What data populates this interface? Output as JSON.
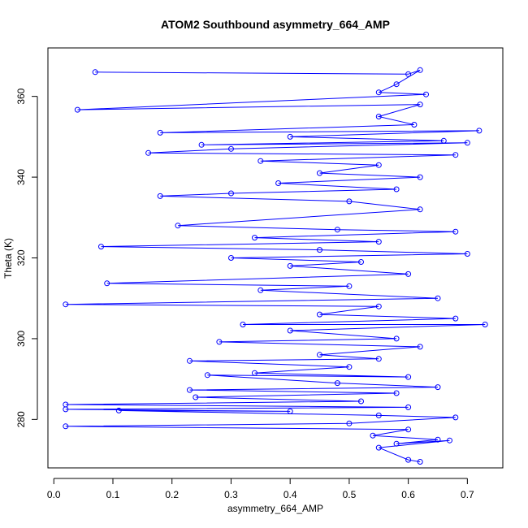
{
  "chart_data": {
    "type": "line",
    "title": "ATOM2 Southbound asymmetry_664_AMP",
    "xlabel": "asymmetry_664_AMP",
    "ylabel": "Theta (K)",
    "xlim": [
      -0.01,
      0.76
    ],
    "ylim": [
      268,
      372
    ],
    "xticks": [
      "0.0",
      "0.1",
      "0.2",
      "0.3",
      "0.4",
      "0.5",
      "0.6",
      "0.7"
    ],
    "yticks": [
      "280",
      "300",
      "320",
      "340",
      "360"
    ],
    "grid": false,
    "legend": "none",
    "marker": "open-circle",
    "series": [
      {
        "color": "#0000ff",
        "points": [
          [
            0.07,
            366.0
          ],
          [
            0.6,
            365.5
          ],
          [
            0.62,
            366.5
          ],
          [
            0.58,
            363.0
          ],
          [
            0.55,
            361.0
          ],
          [
            0.63,
            360.5
          ],
          [
            0.04,
            356.7
          ],
          [
            0.62,
            358.0
          ],
          [
            0.55,
            355.0
          ],
          [
            0.61,
            353.0
          ],
          [
            0.18,
            351.0
          ],
          [
            0.72,
            351.5
          ],
          [
            0.4,
            350.0
          ],
          [
            0.66,
            349.0
          ],
          [
            0.25,
            348.0
          ],
          [
            0.7,
            348.5
          ],
          [
            0.3,
            347.0
          ],
          [
            0.16,
            346.0
          ],
          [
            0.68,
            345.5
          ],
          [
            0.35,
            344.0
          ],
          [
            0.55,
            343.0
          ],
          [
            0.45,
            341.0
          ],
          [
            0.62,
            340.0
          ],
          [
            0.38,
            338.5
          ],
          [
            0.58,
            337.0
          ],
          [
            0.3,
            336.0
          ],
          [
            0.18,
            335.3
          ],
          [
            0.5,
            334.0
          ],
          [
            0.62,
            332.0
          ],
          [
            0.21,
            328.0
          ],
          [
            0.48,
            327.0
          ],
          [
            0.68,
            326.5
          ],
          [
            0.34,
            325.0
          ],
          [
            0.55,
            324.0
          ],
          [
            0.08,
            322.8
          ],
          [
            0.45,
            322.0
          ],
          [
            0.7,
            321.0
          ],
          [
            0.3,
            320.0
          ],
          [
            0.52,
            319.0
          ],
          [
            0.4,
            318.0
          ],
          [
            0.6,
            316.0
          ],
          [
            0.09,
            313.7
          ],
          [
            0.5,
            313.0
          ],
          [
            0.35,
            312.0
          ],
          [
            0.65,
            310.0
          ],
          [
            0.02,
            308.5
          ],
          [
            0.55,
            308.0
          ],
          [
            0.45,
            306.0
          ],
          [
            0.68,
            305.0
          ],
          [
            0.32,
            303.5
          ],
          [
            0.73,
            303.5
          ],
          [
            0.4,
            302.0
          ],
          [
            0.58,
            300.0
          ],
          [
            0.28,
            299.2
          ],
          [
            0.62,
            298.0
          ],
          [
            0.45,
            296.0
          ],
          [
            0.55,
            295.0
          ],
          [
            0.23,
            294.5
          ],
          [
            0.5,
            293.0
          ],
          [
            0.34,
            291.5
          ],
          [
            0.6,
            290.5
          ],
          [
            0.26,
            291.0
          ],
          [
            0.48,
            289.0
          ],
          [
            0.65,
            288.0
          ],
          [
            0.23,
            287.3
          ],
          [
            0.58,
            286.5
          ],
          [
            0.24,
            285.5
          ],
          [
            0.52,
            284.5
          ],
          [
            0.02,
            283.7
          ],
          [
            0.6,
            283.0
          ],
          [
            0.02,
            282.5
          ],
          [
            0.4,
            282.0
          ],
          [
            0.11,
            282.2
          ],
          [
            0.55,
            281.0
          ],
          [
            0.68,
            280.5
          ],
          [
            0.5,
            279.0
          ],
          [
            0.02,
            278.3
          ],
          [
            0.6,
            277.5
          ],
          [
            0.54,
            276.0
          ],
          [
            0.65,
            275.0
          ],
          [
            0.58,
            274.0
          ],
          [
            0.67,
            274.8
          ],
          [
            0.55,
            273.0
          ],
          [
            0.6,
            270.0
          ],
          [
            0.62,
            269.5
          ]
        ]
      }
    ]
  }
}
